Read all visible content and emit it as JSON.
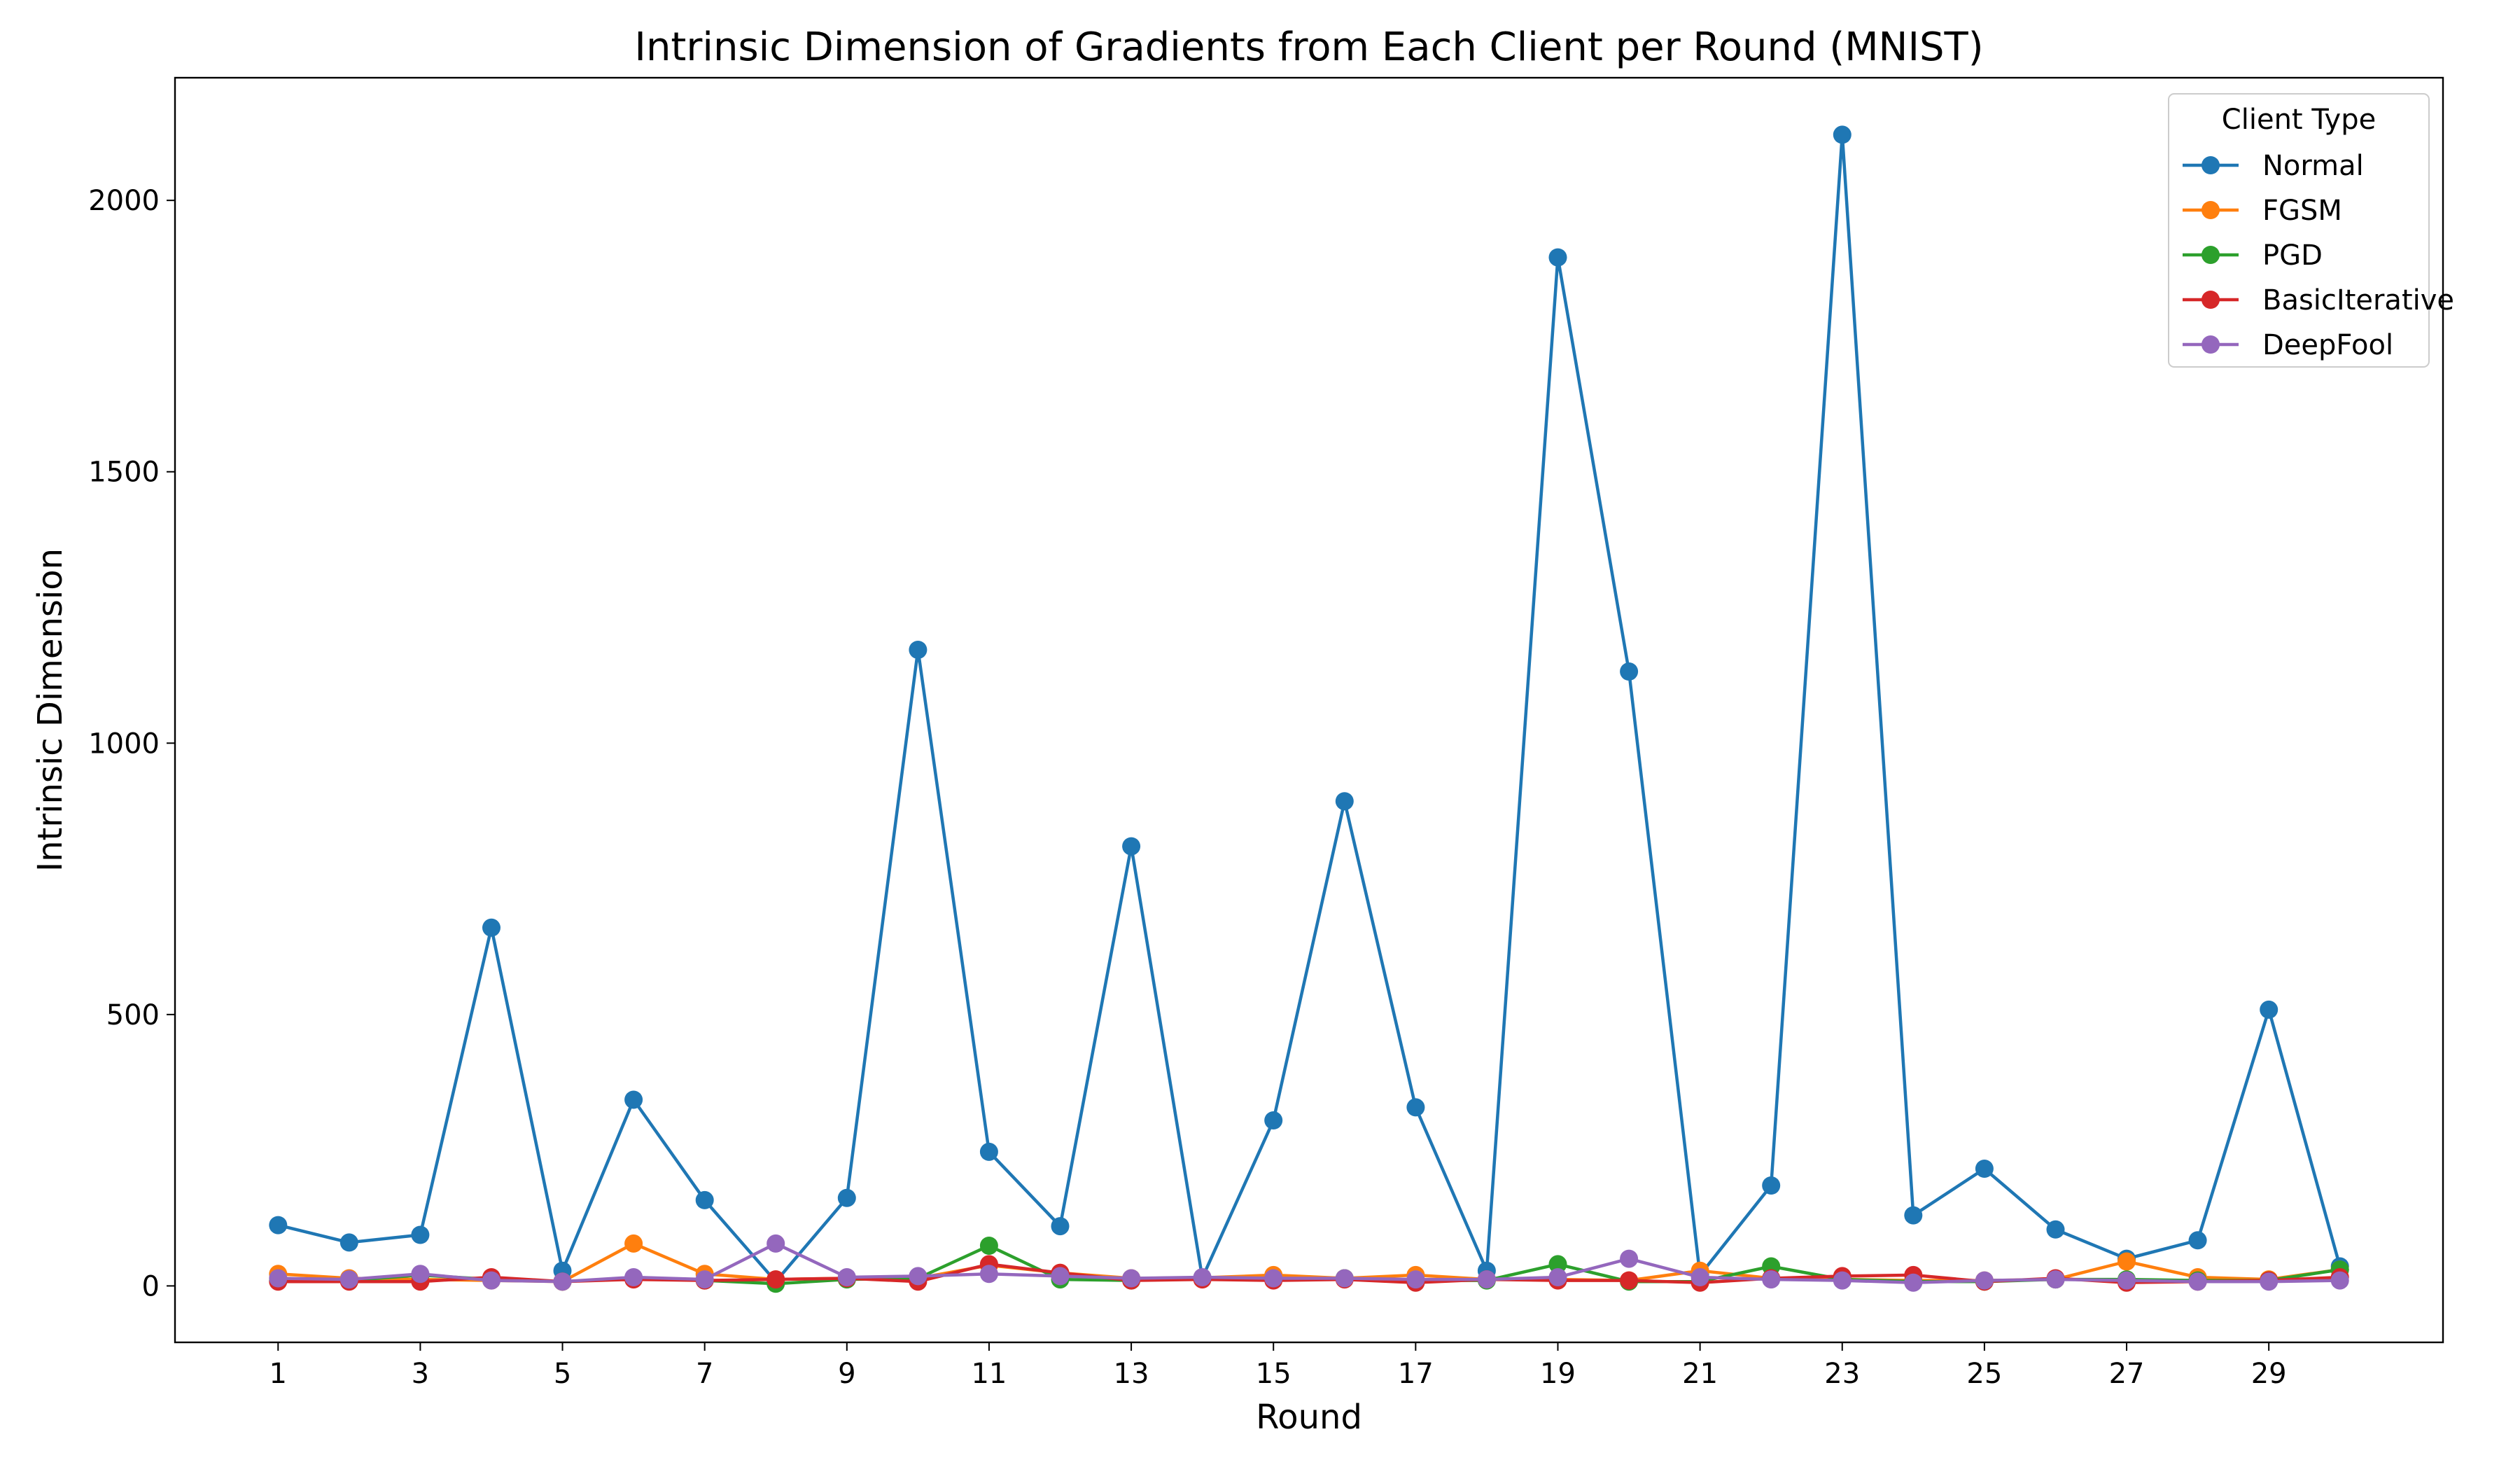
{
  "chart_data": {
    "type": "line",
    "title": "Intrinsic Dimension of Gradients from Each Client per Round (MNIST)",
    "xlabel": "Round",
    "ylabel": "Intrinsic Dimension",
    "x": [
      1,
      2,
      3,
      4,
      5,
      6,
      7,
      8,
      9,
      10,
      11,
      12,
      13,
      14,
      15,
      16,
      17,
      18,
      19,
      20,
      21,
      22,
      23,
      24,
      25,
      26,
      27,
      28,
      29,
      30
    ],
    "xticks": [
      1,
      3,
      5,
      7,
      9,
      11,
      13,
      15,
      17,
      19,
      21,
      23,
      25,
      27,
      29
    ],
    "xlim": [
      -0.45,
      31.45
    ],
    "yticks": [
      0,
      500,
      1000,
      1500,
      2000
    ],
    "ylim": [
      -104,
      2226
    ],
    "grid": false,
    "legend": {
      "title": "Client Type",
      "placement": "upper right"
    },
    "series": [
      {
        "name": "Normal",
        "color": "#1f77b4",
        "values": [
          112,
          80,
          94,
          660,
          28,
          343,
          158,
          8,
          162,
          1172,
          247,
          110,
          810,
          15,
          305,
          893,
          329,
          28,
          1895,
          1132,
          20,
          185,
          2121,
          130,
          216,
          104,
          50,
          84,
          509,
          36
        ]
      },
      {
        "name": "FGSM",
        "color": "#ff7f0e",
        "values": [
          22,
          14,
          12,
          10,
          8,
          78,
          22,
          12,
          14,
          14,
          38,
          24,
          14,
          15,
          20,
          14,
          20,
          12,
          12,
          10,
          28,
          14,
          12,
          10,
          10,
          12,
          45,
          16,
          12,
          30
        ]
      },
      {
        "name": "PGD",
        "color": "#2ca02c",
        "values": [
          10,
          10,
          20,
          12,
          8,
          14,
          10,
          4,
          12,
          14,
          74,
          12,
          10,
          14,
          12,
          14,
          10,
          10,
          40,
          8,
          8,
          36,
          12,
          8,
          8,
          12,
          12,
          10,
          10,
          30
        ]
      },
      {
        "name": "BasicIterative",
        "color": "#d62728",
        "values": [
          8,
          8,
          8,
          16,
          8,
          12,
          10,
          12,
          14,
          8,
          40,
          24,
          10,
          12,
          10,
          12,
          6,
          12,
          10,
          10,
          6,
          14,
          18,
          20,
          8,
          14,
          6,
          8,
          10,
          16
        ]
      },
      {
        "name": "DeepFool",
        "color": "#9467bd",
        "values": [
          14,
          12,
          22,
          10,
          8,
          16,
          12,
          78,
          16,
          18,
          22,
          18,
          14,
          16,
          14,
          14,
          12,
          12,
          16,
          50,
          16,
          12,
          10,
          6,
          10,
          12,
          10,
          8,
          8,
          10
        ]
      }
    ]
  }
}
